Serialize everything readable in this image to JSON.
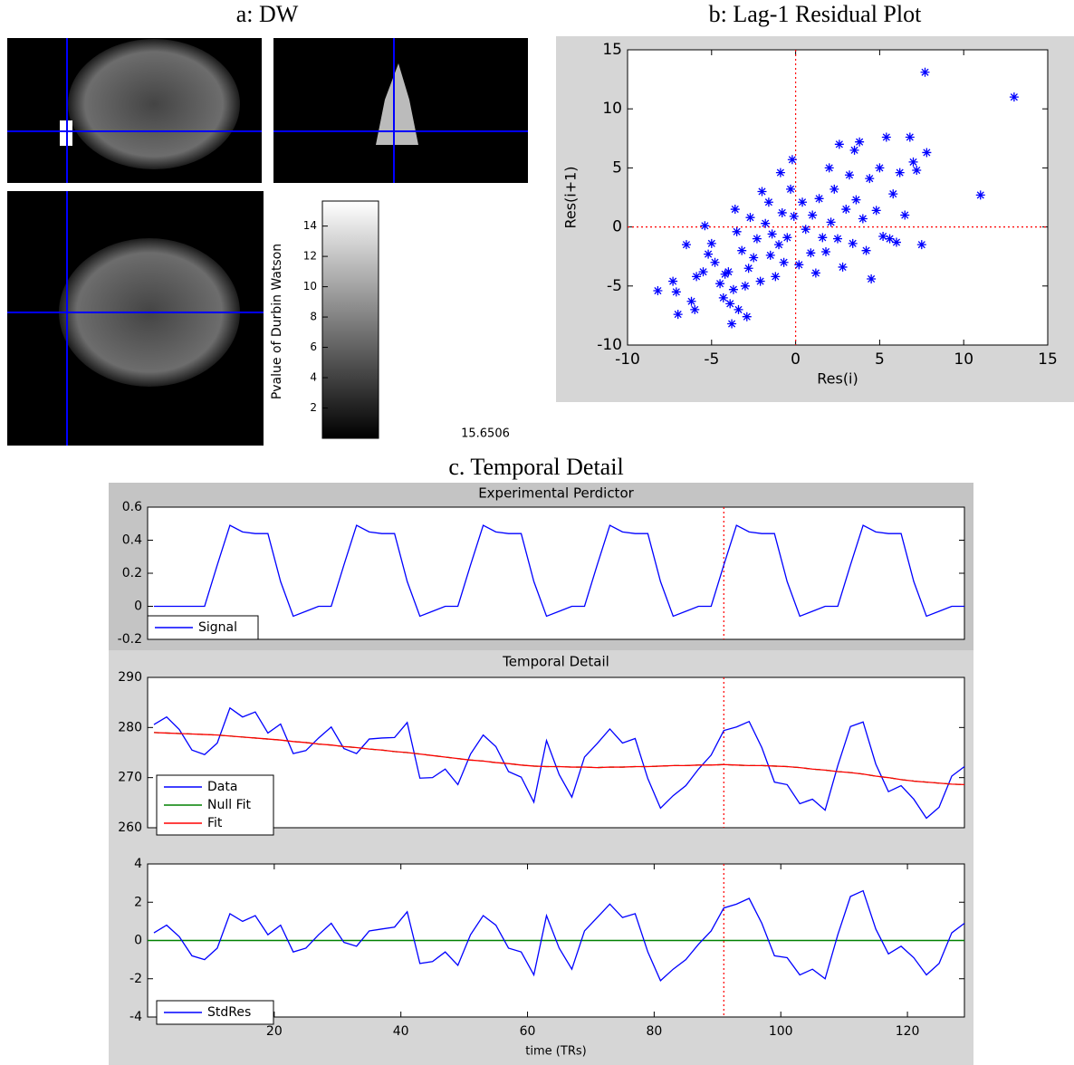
{
  "panel_a": {
    "title": "a: DW",
    "colorbar": {
      "label": "Pvalue of Durbin Watson",
      "lim": [
        0,
        15.6506
      ],
      "ticks": [
        2,
        4,
        6,
        8,
        10,
        12,
        14
      ]
    }
  },
  "panel_c": {
    "title": "c. Temporal Detail"
  },
  "chart_data": [
    {
      "type": "scatter",
      "title": "b: Lag-1 Residual Plot",
      "x_label": "Res(i)",
      "y_label": "Res(i+1)",
      "xlim": [
        -10,
        15
      ],
      "ylim": [
        -10,
        15
      ],
      "xticks": [
        -10,
        -5,
        0,
        5,
        10,
        15
      ],
      "yticks": [
        -10,
        -5,
        0,
        5,
        10,
        15
      ],
      "vline": 0,
      "hline": 0,
      "ref_color": "#ff0000",
      "marker": "asterisk",
      "series": [
        {
          "color": "#0000ff",
          "x": [
            -8.2,
            -7.3,
            -7.1,
            -7.0,
            -6.5,
            -6.2,
            -6.0,
            -5.9,
            -5.5,
            -5.4,
            -5.2,
            -5.0,
            -4.8,
            -4.5,
            -4.3,
            -4.2,
            -4.0,
            -3.9,
            -3.8,
            -3.7,
            -3.6,
            -3.5,
            -3.4,
            -3.2,
            -3.0,
            -2.9,
            -2.8,
            -2.7,
            -2.5,
            -2.3,
            -2.1,
            -2.0,
            -1.8,
            -1.6,
            -1.5,
            -1.4,
            -1.2,
            -1.0,
            -0.9,
            -0.8,
            -0.7,
            -0.5,
            -0.3,
            -0.2,
            -0.1,
            0.2,
            0.4,
            0.6,
            0.9,
            1.0,
            1.2,
            1.4,
            1.6,
            1.8,
            2.0,
            2.1,
            2.3,
            2.5,
            2.6,
            2.8,
            3.0,
            3.2,
            3.4,
            3.5,
            3.6,
            3.8,
            4.0,
            4.2,
            4.4,
            4.5,
            4.8,
            5.0,
            5.2,
            5.4,
            5.6,
            5.8,
            6.0,
            6.2,
            6.5,
            6.8,
            7.0,
            7.2,
            7.5,
            7.8,
            7.7,
            11.0,
            13.0
          ],
          "values": [
            -5.4,
            -4.6,
            -5.5,
            -7.4,
            -1.5,
            -6.3,
            -7.0,
            -4.2,
            -3.8,
            0.1,
            -2.3,
            -1.4,
            -3.0,
            -4.8,
            -6.0,
            -4.0,
            -3.8,
            -6.5,
            -8.2,
            -5.3,
            1.5,
            -0.4,
            -7.0,
            -2.0,
            -5.0,
            -7.6,
            -3.5,
            0.8,
            -2.6,
            -1.0,
            -4.6,
            3.0,
            0.3,
            2.1,
            -2.4,
            -0.6,
            -4.2,
            -1.5,
            4.6,
            1.2,
            -3.0,
            -0.9,
            3.2,
            5.7,
            0.9,
            -3.2,
            2.1,
            -0.2,
            -2.2,
            1.0,
            -3.9,
            2.4,
            -0.9,
            -2.1,
            5.0,
            0.4,
            3.2,
            -1.0,
            7.0,
            -3.4,
            1.5,
            4.4,
            -1.4,
            6.5,
            2.3,
            7.2,
            0.7,
            -2.0,
            4.1,
            -4.4,
            1.4,
            5.0,
            -0.8,
            7.6,
            -1.0,
            2.8,
            -1.3,
            4.6,
            1.0,
            7.6,
            5.5,
            4.8,
            -1.5,
            6.3,
            13.1,
            2.7,
            11.0
          ]
        }
      ]
    },
    {
      "type": "line",
      "title": "Experimental Perdictor",
      "xlim": [
        0,
        129
      ],
      "ylim": [
        -0.2,
        0.6
      ],
      "yticks": [
        -0.2,
        0,
        0.2,
        0.4,
        0.6
      ],
      "vline": 91,
      "ref_color": "#ff0000",
      "legend": "lower-left",
      "x": [
        1,
        3,
        5,
        7,
        9,
        11,
        13,
        15,
        17,
        19,
        21,
        23,
        25,
        27,
        29,
        31,
        33,
        35,
        37,
        39,
        41,
        43,
        45,
        47,
        49,
        51,
        53,
        55,
        57,
        59,
        61,
        63,
        65,
        67,
        69,
        71,
        73,
        75,
        77,
        79,
        81,
        83,
        85,
        87,
        89,
        91,
        93,
        95,
        97,
        99,
        101,
        103,
        105,
        107,
        109,
        111,
        113,
        115,
        117,
        119,
        121,
        123,
        125,
        127,
        129
      ],
      "series": [
        {
          "name": "Signal",
          "color": "#0000ff",
          "values": [
            0,
            0,
            0,
            0,
            0,
            0.25,
            0.49,
            0.45,
            0.44,
            0.44,
            0.15,
            -0.06,
            -0.03,
            0,
            0,
            0.25,
            0.49,
            0.45,
            0.44,
            0.44,
            0.15,
            -0.06,
            -0.03,
            0,
            0,
            0.25,
            0.49,
            0.45,
            0.44,
            0.44,
            0.15,
            -0.06,
            -0.03,
            0,
            0,
            0.25,
            0.49,
            0.45,
            0.44,
            0.44,
            0.15,
            -0.06,
            -0.03,
            0,
            0,
            0.25,
            0.49,
            0.45,
            0.44,
            0.44,
            0.15,
            -0.06,
            -0.03,
            0,
            0,
            0.25,
            0.49,
            0.45,
            0.44,
            0.44,
            0.15,
            -0.06,
            -0.03,
            0,
            0
          ]
        }
      ]
    },
    {
      "type": "line",
      "title": "Temporal Detail",
      "xlim": [
        0,
        129
      ],
      "ylim": [
        260,
        290
      ],
      "yticks": [
        260,
        270,
        280,
        290
      ],
      "vline": 91,
      "ref_color": "#ff0000",
      "legend": "lower-left",
      "x": [
        1,
        3,
        5,
        7,
        9,
        11,
        13,
        15,
        17,
        19,
        21,
        23,
        25,
        27,
        29,
        31,
        33,
        35,
        37,
        39,
        41,
        43,
        45,
        47,
        49,
        51,
        53,
        55,
        57,
        59,
        61,
        63,
        65,
        67,
        69,
        71,
        73,
        75,
        77,
        79,
        81,
        83,
        85,
        87,
        89,
        91,
        93,
        95,
        97,
        99,
        101,
        103,
        105,
        107,
        109,
        111,
        113,
        115,
        117,
        119,
        121,
        123,
        125,
        127,
        129
      ],
      "series": [
        {
          "name": "Data",
          "color": "#0000ff",
          "values": [
            280.6,
            282.1,
            279.6,
            275.5,
            274.6,
            276.9,
            283.9,
            282.1,
            283.1,
            278.9,
            280.7,
            274.8,
            275.4,
            277.9,
            280.1,
            275.8,
            274.8,
            277.7,
            277.9,
            278.0,
            281.0,
            269.9,
            270.0,
            271.7,
            268.6,
            274.7,
            278.5,
            276.2,
            271.2,
            270.1,
            265.1,
            277.4,
            270.6,
            266.1,
            274.1,
            276.8,
            279.7,
            276.9,
            277.8,
            269.8,
            263.9,
            266.4,
            268.4,
            271.7,
            274.5,
            279.4,
            280.1,
            281.2,
            276.0,
            269.1,
            268.6,
            264.8,
            265.7,
            263.5,
            272.4,
            280.2,
            281.1,
            272.7,
            267.2,
            268.4,
            265.7,
            261.9,
            264.1,
            270.3,
            272.2
          ]
        },
        {
          "name": "Null Fit",
          "color": "#008000",
          "values": [
            279.0,
            278.9,
            278.8,
            278.7,
            278.6,
            278.5,
            278.3,
            278.1,
            277.9,
            277.7,
            277.5,
            277.2,
            277.0,
            276.7,
            276.5,
            276.2,
            276.0,
            275.7,
            275.5,
            275.2,
            275.0,
            274.7,
            274.4,
            274.1,
            273.8,
            273.5,
            273.3,
            273.0,
            272.8,
            272.5,
            272.3,
            272.2,
            272.2,
            272.1,
            272.1,
            272.0,
            272.1,
            272.1,
            272.2,
            272.2,
            272.3,
            272.4,
            272.4,
            272.5,
            272.5,
            272.6,
            272.5,
            272.4,
            272.4,
            272.3,
            272.2,
            272.0,
            271.7,
            271.5,
            271.2,
            271.0,
            270.7,
            270.3,
            270.0,
            269.6,
            269.3,
            269.1,
            268.9,
            268.7,
            268.6
          ]
        },
        {
          "name": "Fit",
          "color": "#ff0000",
          "values": [
            279.0,
            278.9,
            278.8,
            278.7,
            278.6,
            278.5,
            278.3,
            278.1,
            277.9,
            277.7,
            277.5,
            277.2,
            277.0,
            276.7,
            276.5,
            276.2,
            276.0,
            275.7,
            275.5,
            275.2,
            275.0,
            274.7,
            274.4,
            274.1,
            273.8,
            273.5,
            273.3,
            273.0,
            272.8,
            272.5,
            272.3,
            272.2,
            272.2,
            272.1,
            272.1,
            272.0,
            272.1,
            272.1,
            272.2,
            272.2,
            272.3,
            272.4,
            272.4,
            272.5,
            272.5,
            272.6,
            272.5,
            272.4,
            272.4,
            272.3,
            272.2,
            272.0,
            271.7,
            271.5,
            271.2,
            271.0,
            270.7,
            270.3,
            270.0,
            269.6,
            269.3,
            269.1,
            268.9,
            268.7,
            268.6
          ]
        }
      ]
    },
    {
      "type": "line",
      "x_label": "time (TRs)",
      "xlim": [
        0,
        129
      ],
      "ylim": [
        -4,
        4
      ],
      "yticks": [
        -4,
        -2,
        0,
        2,
        4
      ],
      "xticks": [
        20,
        40,
        60,
        80,
        100,
        120
      ],
      "vline": 91,
      "ref_color": "#ff0000",
      "hline": 0,
      "hline_color": "#008000",
      "legend": "lower-left",
      "x": [
        1,
        3,
        5,
        7,
        9,
        11,
        13,
        15,
        17,
        19,
        21,
        23,
        25,
        27,
        29,
        31,
        33,
        35,
        37,
        39,
        41,
        43,
        45,
        47,
        49,
        51,
        53,
        55,
        57,
        59,
        61,
        63,
        65,
        67,
        69,
        71,
        73,
        75,
        77,
        79,
        81,
        83,
        85,
        87,
        89,
        91,
        93,
        95,
        97,
        99,
        101,
        103,
        105,
        107,
        109,
        111,
        113,
        115,
        117,
        119,
        121,
        123,
        125,
        127,
        129
      ],
      "series": [
        {
          "name": "StdRes",
          "color": "#0000ff",
          "values": [
            0.4,
            0.8,
            0.2,
            -0.8,
            -1.0,
            -0.4,
            1.4,
            1.0,
            1.3,
            0.3,
            0.8,
            -0.6,
            -0.4,
            0.3,
            0.9,
            -0.1,
            -0.3,
            0.5,
            0.6,
            0.7,
            1.5,
            -1.2,
            -1.1,
            -0.6,
            -1.3,
            0.3,
            1.3,
            0.8,
            -0.4,
            -0.6,
            -1.8,
            1.3,
            -0.4,
            -1.5,
            0.5,
            1.2,
            1.9,
            1.2,
            1.4,
            -0.6,
            -2.1,
            -1.5,
            -1.0,
            -0.2,
            0.5,
            1.7,
            1.9,
            2.2,
            0.9,
            -0.8,
            -0.9,
            -1.8,
            -1.5,
            -2.0,
            0.3,
            2.3,
            2.6,
            0.6,
            -0.7,
            -0.3,
            -0.9,
            -1.8,
            -1.2,
            0.4,
            0.9
          ]
        }
      ]
    }
  ]
}
